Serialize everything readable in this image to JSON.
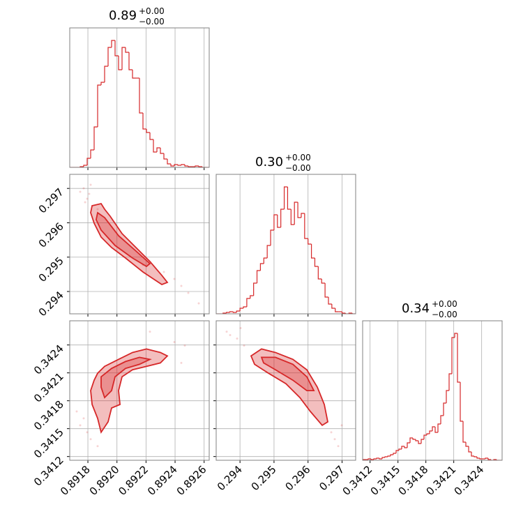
{
  "chart_data": [
    {
      "type": "histogram",
      "title": "0.89",
      "title_sup": "+0.00",
      "title_sub": "−0.00",
      "color": "#d62728",
      "bins": [
        0.891675,
        0.891699,
        0.891723,
        0.891747,
        0.891771,
        0.891795,
        0.891819,
        0.891843,
        0.891867,
        0.891891,
        0.891915,
        0.891939,
        0.891963,
        0.891987,
        0.892011,
        0.892035,
        0.892059,
        0.892083,
        0.892107,
        0.892131,
        0.892155,
        0.892179,
        0.892203,
        0.892227,
        0.892251,
        0.892275,
        0.892299,
        0.892323,
        0.892347,
        0.892371,
        0.892395,
        0.892419,
        0.892443,
        0.892467,
        0.892491,
        0.892515,
        0.892539,
        0.892563,
        0.892587,
        0.892611,
        0.892635
      ],
      "values": [
        0,
        0,
        0,
        1,
        3,
        13,
        25,
        58,
        118,
        122,
        145,
        172,
        182,
        160,
        140,
        172,
        165,
        140,
        128,
        128,
        78,
        55,
        50,
        40,
        22,
        28,
        20,
        12,
        5,
        2,
        4,
        3,
        4,
        2,
        1,
        1,
        2,
        1,
        0,
        0
      ],
      "xlim": [
        0.891675,
        0.892635
      ],
      "ylim": [
        0,
        200
      ],
      "xticks": [
        0.8918,
        0.892,
        0.8922,
        0.8924,
        0.8926
      ],
      "xtick_labels": false,
      "grid": true
    },
    {
      "type": "scatter",
      "color": "#d62728",
      "x": [
        0.891771,
        0.891795,
        0.891809,
        0.891781,
        0.891867,
        0.892323,
        0.892395,
        0.892443,
        0.892491,
        0.892563,
        0.892179,
        0.891747,
        0.891819
      ],
      "y": [
        0.297004,
        0.2967,
        0.296842,
        0.296598,
        0.296395,
        0.294568,
        0.294365,
        0.294162,
        0.293959,
        0.293655,
        0.294771,
        0.296903,
        0.297106
      ],
      "contours": [
        {
          "x": [
            0.891829,
            0.891891,
            0.891915,
            0.891953,
            0.892035,
            0.892131,
            0.892227,
            0.892309,
            0.892347,
            0.892309,
            0.892179,
            0.892059,
            0.891963,
            0.891891,
            0.891843,
            0.891819
          ],
          "y": [
            0.296497,
            0.296557,
            0.296395,
            0.296192,
            0.295685,
            0.295279,
            0.294873,
            0.294467,
            0.294264,
            0.294203,
            0.294568,
            0.294974,
            0.295279,
            0.295583,
            0.295989,
            0.296294
          ]
        },
        {
          "x": [
            0.891867,
            0.891915,
            0.892011,
            0.892131,
            0.892227,
            0.892203,
            0.892107,
            0.891987,
            0.891891,
            0.891857
          ],
          "y": [
            0.296294,
            0.296151,
            0.295624,
            0.295177,
            0.294812,
            0.29473,
            0.294974,
            0.295339,
            0.295786,
            0.296091
          ]
        }
      ],
      "xlim": [
        0.891675,
        0.892635
      ],
      "ylim": [
        0.29335,
        0.29741
      ],
      "xticks": [
        0.8918,
        0.892,
        0.8922,
        0.8924,
        0.8926
      ],
      "yticks": [
        0.294,
        0.295,
        0.296,
        0.297
      ],
      "xtick_labels": false,
      "ytick_labels": true,
      "grid": true
    },
    {
      "type": "histogram",
      "title": "0.30",
      "title_sup": "+0.00",
      "title_sub": "−0.00",
      "color": "#d62728",
      "bins": [
        0.2933,
        0.2934,
        0.2935,
        0.2936,
        0.2937,
        0.2938,
        0.2939,
        0.294,
        0.2941,
        0.2942,
        0.2943,
        0.2944,
        0.2945,
        0.2946,
        0.2947,
        0.2948,
        0.2949,
        0.295,
        0.2951,
        0.2952,
        0.2953,
        0.2954,
        0.2955,
        0.2956,
        0.2957,
        0.2958,
        0.2959,
        0.296,
        0.2961,
        0.2962,
        0.2963,
        0.2964,
        0.2965,
        0.2966,
        0.2967,
        0.2968,
        0.2969,
        0.297,
        0.2971,
        0.2972,
        0.2973,
        0.2974
      ],
      "values": [
        0,
        0,
        1,
        2,
        3,
        2,
        4,
        8,
        10,
        22,
        26,
        44,
        62,
        72,
        80,
        98,
        120,
        142,
        124,
        150,
        182,
        150,
        128,
        160,
        138,
        144,
        108,
        100,
        80,
        68,
        50,
        44,
        24,
        14,
        8,
        3,
        3,
        1,
        0,
        1,
        0
      ],
      "xlim": [
        0.2933,
        0.2974
      ],
      "ylim": [
        0,
        200
      ],
      "xticks": [
        0.294,
        0.295,
        0.296,
        0.297
      ],
      "xtick_labels": false,
      "grid": true
    },
    {
      "type": "scatter",
      "color": "#d62728",
      "x": [
        0.891771,
        0.891795,
        0.891747,
        0.891819,
        0.892395,
        0.892467,
        0.892227,
        0.892443,
        0.891723,
        0.891867
      ],
      "y": [
        0.341611,
        0.341461,
        0.341536,
        0.341387,
        0.342431,
        0.342394,
        0.342543,
        0.342207,
        0.341685,
        0.341312
      ],
      "contours": [
        {
          "x": [
            0.891843,
            0.891867,
            0.891915,
            0.892011,
            0.892107,
            0.892203,
            0.892299,
            0.892347,
            0.892299,
            0.892203,
            0.892107,
            0.892035,
            0.892011,
            0.892021,
            0.891963,
            0.891939,
            0.891891,
            0.891867,
            0.891829,
            0.891819
          ],
          "y": [
            0.342021,
            0.342096,
            0.34217,
            0.342245,
            0.342319,
            0.342357,
            0.342319,
            0.342282,
            0.342207,
            0.34217,
            0.342133,
            0.342058,
            0.341909,
            0.34176,
            0.341722,
            0.341573,
            0.341461,
            0.341611,
            0.34176,
            0.341909
          ]
        },
        {
          "x": [
            0.891891,
            0.891963,
            0.892059,
            0.892155,
            0.892227,
            0.892155,
            0.892059,
            0.891987,
            0.891963,
            0.891915,
            0.891891
          ],
          "y": [
            0.342058,
            0.342148,
            0.342222,
            0.342267,
            0.342245,
            0.342192,
            0.342148,
            0.342058,
            0.341909,
            0.341834,
            0.341946
          ]
        }
      ],
      "xlim": [
        0.891675,
        0.892635
      ],
      "ylim": [
        0.34116,
        0.34266
      ],
      "xticks": [
        0.8918,
        {
          "value": 0.892,
          "label": "0.8920"
        },
        0.8922,
        0.8924,
        0.8926
      ],
      "yticks": [
        0.3412,
        0.3415,
        0.3418,
        0.3421,
        0.3424
      ],
      "xtick_labels": true,
      "ytick_labels": true,
      "grid": true
    },
    {
      "type": "scatter",
      "color": "#d62728",
      "x": [
        0.293608,
        0.293915,
        0.29412,
        0.29371,
        0.296785,
        0.296888,
        0.296683,
        0.294018,
        0.29699
      ],
      "y": [
        0.342543,
        0.342469,
        0.342394,
        0.342506,
        0.341387,
        0.341312,
        0.341461,
        0.342581,
        0.341536
      ],
      "contours": [
        {
          "x": [
            0.294325,
            0.294633,
            0.295043,
            0.295555,
            0.295965,
            0.296273,
            0.296478,
            0.29658,
            0.296416,
            0.296068,
            0.29576,
            0.29535,
            0.294838,
            0.294428
          ],
          "y": [
            0.342282,
            0.342357,
            0.342319,
            0.342245,
            0.342133,
            0.341946,
            0.34176,
            0.341573,
            0.341536,
            0.341685,
            0.341834,
            0.341983,
            0.342096,
            0.342192
          ]
        },
        {
          "x": [
            0.294633,
            0.295043,
            0.295555,
            0.295965,
            0.296171,
            0.295965,
            0.295555,
            0.295043,
            0.294694
          ],
          "y": [
            0.342267,
            0.342267,
            0.342192,
            0.342058,
            0.341909,
            0.341909,
            0.342021,
            0.342133,
            0.342207
          ]
        }
      ],
      "xlim": [
        0.2933,
        0.2974
      ],
      "ylim": [
        0.34116,
        0.34266
      ],
      "xticks": [
        0.294,
        0.295,
        0.296,
        0.297
      ],
      "yticks": [
        0.3412,
        0.3415,
        0.3418,
        0.3421,
        0.3424
      ],
      "xtick_labels": true,
      "ytick_labels": false,
      "grid": true
    },
    {
      "type": "histogram",
      "title": "0.34",
      "title_sup": "+0.00",
      "title_sub": "−0.00",
      "color": "#d62728",
      "bins": [
        0.34112,
        0.34115,
        0.34118,
        0.34121,
        0.34124,
        0.34127,
        0.3413,
        0.34133,
        0.34136,
        0.34139,
        0.34142,
        0.34145,
        0.34148,
        0.34151,
        0.34154,
        0.34157,
        0.3416,
        0.34163,
        0.34166,
        0.34169,
        0.34172,
        0.34175,
        0.34178,
        0.34181,
        0.34184,
        0.34187,
        0.3419,
        0.34193,
        0.34196,
        0.34199,
        0.34202,
        0.34205,
        0.34208,
        0.34211,
        0.34214,
        0.34217,
        0.3422,
        0.34223,
        0.34226,
        0.34229,
        0.34232,
        0.34235,
        0.34238,
        0.34241,
        0.34244,
        0.34247,
        0.3425,
        0.34253,
        0.34256,
        0.34259,
        0.34262
      ],
      "values": [
        1,
        1,
        2,
        1,
        2,
        3,
        2,
        4,
        5,
        6,
        8,
        10,
        14,
        16,
        20,
        18,
        25,
        32,
        30,
        28,
        24,
        30,
        36,
        38,
        42,
        48,
        40,
        52,
        64,
        82,
        100,
        124,
        176,
        182,
        112,
        56,
        26,
        20,
        12,
        6,
        5,
        3,
        2,
        2,
        3,
        1,
        0,
        1,
        0,
        0
      ],
      "xlim": [
        0.34112,
        0.34262
      ],
      "ylim": [
        0,
        200
      ],
      "xticks": [
        0.3412,
        0.3415,
        0.3418,
        0.3421,
        0.3424
      ],
      "xtick_labels": true,
      "grid": true
    }
  ]
}
